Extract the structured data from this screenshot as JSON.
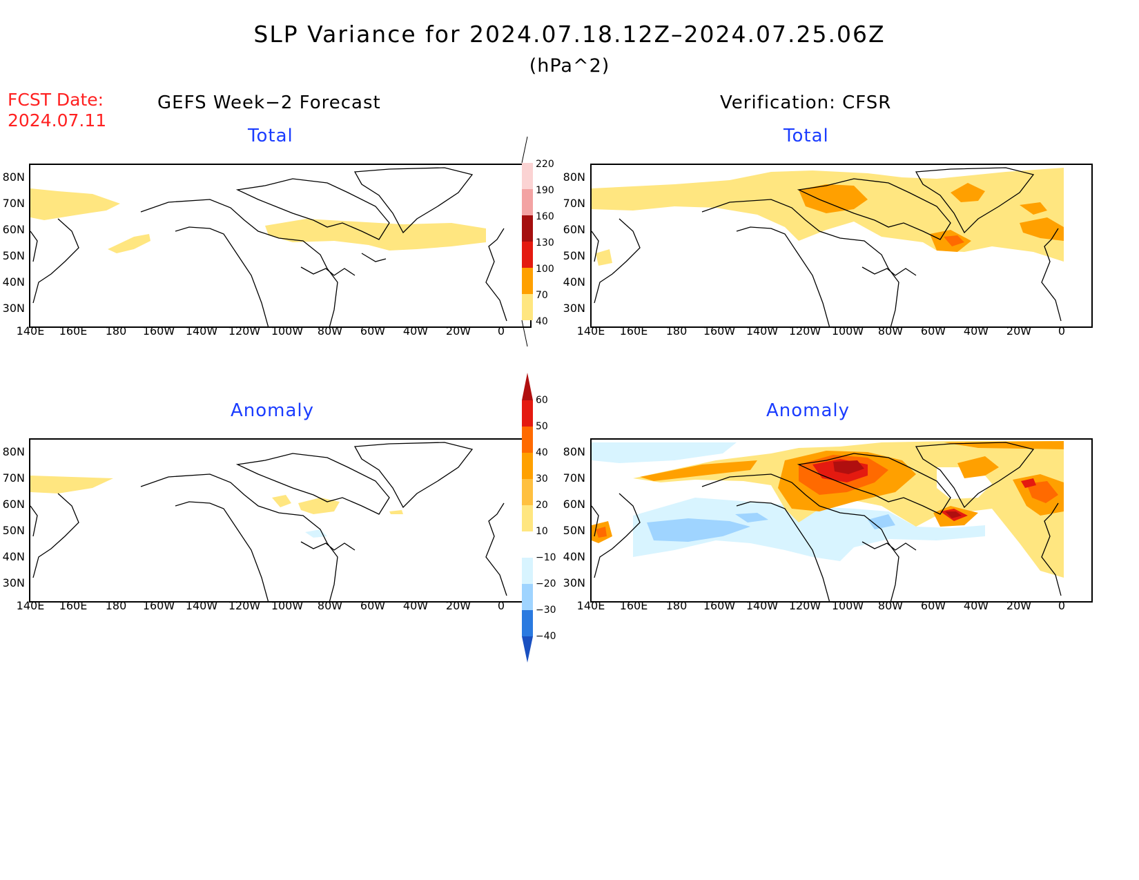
{
  "header": {
    "title": "SLP Variance for 2024.07.18.12Z–2024.07.25.06Z",
    "units": "(hPa^2)",
    "fcst_label": "FCST Date:",
    "fcst_date": "2024.07.11",
    "left_column_title": "GEFS Week−2 Forecast",
    "right_column_title": "Verification: CFSR"
  },
  "panels": {
    "top_left_title": "Total",
    "top_right_title": "Total",
    "bottom_left_title": "Anomaly",
    "bottom_right_title": "Anomaly"
  },
  "axes": {
    "lat_labels": [
      "80N",
      "70N",
      "60N",
      "50N",
      "40N",
      "30N"
    ],
    "lon_labels": [
      "140E",
      "160E",
      "180",
      "160W",
      "140W",
      "120W",
      "100W",
      "80W",
      "60W",
      "40W",
      "20W",
      "0"
    ]
  },
  "colorbar_total": {
    "labels": [
      "220",
      "190",
      "160",
      "130",
      "100",
      "70",
      "40"
    ],
    "colors": [
      "#fbd3d3",
      "#f3a3a3",
      "#a50f0f",
      "#e41a10",
      "#ff6a00",
      "#ffa000",
      "#ffe680"
    ]
  },
  "colorbar_anomaly": {
    "labels": [
      "60",
      "50",
      "40",
      "30",
      "20",
      "10",
      "−10",
      "−20",
      "−30",
      "−40"
    ],
    "colors": [
      "#b00f0f",
      "#e41a10",
      "#ff6a00",
      "#ffa000",
      "#ffc040",
      "#ffe680",
      "#ffffff",
      "#d8f4ff",
      "#9fd4ff",
      "#5aa8f0",
      "#2a7ae0",
      "#1a50c0"
    ]
  },
  "colors": {
    "title_blue": "#1a3cff",
    "fcst_red": "#ff2020"
  }
}
